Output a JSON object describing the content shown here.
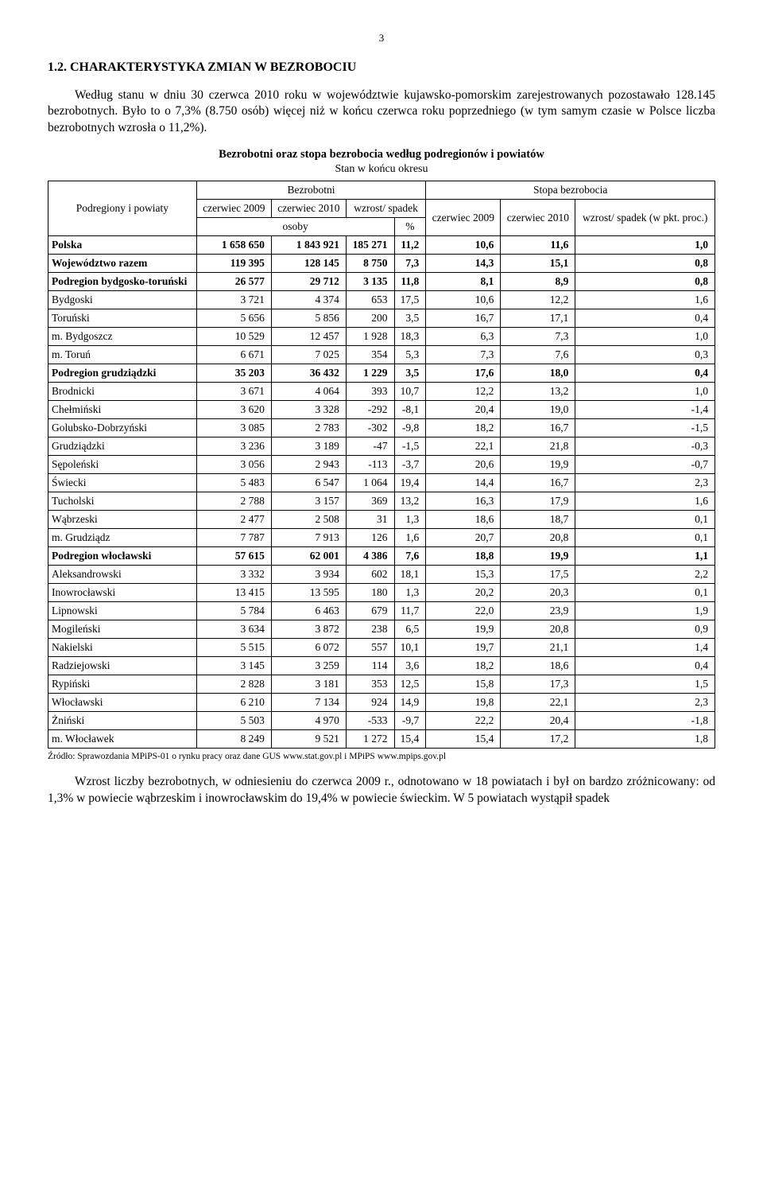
{
  "page_number": "3",
  "heading": "1.2.    CHARAKTERYSTYKA ZMIAN W BEZROBOCIU",
  "para1": "Według stanu w dniu 30 czerwca 2010 roku w województwie kujawsko-pomorskim zarejestrowanych pozostawało 128.145 bezrobotnych. Było to o 7,3% (8.750 osób) więcej niż w końcu czerwca roku poprzedniego (w tym samym czasie w Polsce liczba bezrobotnych wzrosła o 11,2%).",
  "table_title": "Bezrobotni oraz stopa bezrobocia według podregionów i powiatów",
  "table_subtitle": "Stan w końcu okresu",
  "headers": {
    "col_group": "Podregiony i powiaty",
    "bezrobotni": "Bezrobotni",
    "stopa": "Stopa bezrobocia",
    "c2009": "czerwiec 2009",
    "c2010": "czerwiec 2010",
    "wzrost_spadek": "wzrost/ spadek",
    "osoby": "osoby",
    "pct": "%",
    "wzrost_pkt": "wzrost/ spadek (w pkt. proc.)"
  },
  "rows": [
    {
      "label": "Polska",
      "bold": true,
      "v": [
        "1 658 650",
        "1 843 921",
        "185 271",
        "11,2",
        "10,6",
        "11,6",
        "1,0"
      ]
    },
    {
      "label": "Województwo razem",
      "bold": true,
      "v": [
        "119 395",
        "128 145",
        "8 750",
        "7,3",
        "14,3",
        "15,1",
        "0,8"
      ]
    },
    {
      "label": "Podregion bydgosko-toruński",
      "bold": true,
      "v": [
        "26 577",
        "29 712",
        "3 135",
        "11,8",
        "8,1",
        "8,9",
        "0,8"
      ]
    },
    {
      "label": "Bydgoski",
      "bold": false,
      "v": [
        "3 721",
        "4 374",
        "653",
        "17,5",
        "10,6",
        "12,2",
        "1,6"
      ]
    },
    {
      "label": "Toruński",
      "bold": false,
      "v": [
        "5 656",
        "5 856",
        "200",
        "3,5",
        "16,7",
        "17,1",
        "0,4"
      ]
    },
    {
      "label": "m. Bydgoszcz",
      "bold": false,
      "v": [
        "10 529",
        "12 457",
        "1 928",
        "18,3",
        "6,3",
        "7,3",
        "1,0"
      ]
    },
    {
      "label": "m. Toruń",
      "bold": false,
      "v": [
        "6 671",
        "7 025",
        "354",
        "5,3",
        "7,3",
        "7,6",
        "0,3"
      ]
    },
    {
      "label": "Podregion grudziądzki",
      "bold": true,
      "v": [
        "35 203",
        "36 432",
        "1 229",
        "3,5",
        "17,6",
        "18,0",
        "0,4"
      ]
    },
    {
      "label": "Brodnicki",
      "bold": false,
      "v": [
        "3 671",
        "4 064",
        "393",
        "10,7",
        "12,2",
        "13,2",
        "1,0"
      ]
    },
    {
      "label": "Chełmiński",
      "bold": false,
      "v": [
        "3 620",
        "3 328",
        "-292",
        "-8,1",
        "20,4",
        "19,0",
        "-1,4"
      ]
    },
    {
      "label": "Golubsko-Dobrzyński",
      "bold": false,
      "v": [
        "3 085",
        "2 783",
        "-302",
        "-9,8",
        "18,2",
        "16,7",
        "-1,5"
      ]
    },
    {
      "label": "Grudziądzki",
      "bold": false,
      "v": [
        "3 236",
        "3 189",
        "-47",
        "-1,5",
        "22,1",
        "21,8",
        "-0,3"
      ]
    },
    {
      "label": "Sępoleński",
      "bold": false,
      "v": [
        "3 056",
        "2 943",
        "-113",
        "-3,7",
        "20,6",
        "19,9",
        "-0,7"
      ]
    },
    {
      "label": "Świecki",
      "bold": false,
      "v": [
        "5 483",
        "6 547",
        "1 064",
        "19,4",
        "14,4",
        "16,7",
        "2,3"
      ]
    },
    {
      "label": "Tucholski",
      "bold": false,
      "v": [
        "2 788",
        "3 157",
        "369",
        "13,2",
        "16,3",
        "17,9",
        "1,6"
      ]
    },
    {
      "label": "Wąbrzeski",
      "bold": false,
      "v": [
        "2 477",
        "2 508",
        "31",
        "1,3",
        "18,6",
        "18,7",
        "0,1"
      ]
    },
    {
      "label": "m. Grudziądz",
      "bold": false,
      "v": [
        "7 787",
        "7 913",
        "126",
        "1,6",
        "20,7",
        "20,8",
        "0,1"
      ]
    },
    {
      "label": "Podregion włocławski",
      "bold": true,
      "v": [
        "57 615",
        "62 001",
        "4 386",
        "7,6",
        "18,8",
        "19,9",
        "1,1"
      ]
    },
    {
      "label": "Aleksandrowski",
      "bold": false,
      "v": [
        "3 332",
        "3 934",
        "602",
        "18,1",
        "15,3",
        "17,5",
        "2,2"
      ]
    },
    {
      "label": "Inowrocławski",
      "bold": false,
      "v": [
        "13 415",
        "13 595",
        "180",
        "1,3",
        "20,2",
        "20,3",
        "0,1"
      ]
    },
    {
      "label": "Lipnowski",
      "bold": false,
      "v": [
        "5 784",
        "6 463",
        "679",
        "11,7",
        "22,0",
        "23,9",
        "1,9"
      ]
    },
    {
      "label": "Mogileński",
      "bold": false,
      "v": [
        "3 634",
        "3 872",
        "238",
        "6,5",
        "19,9",
        "20,8",
        "0,9"
      ]
    },
    {
      "label": "Nakielski",
      "bold": false,
      "v": [
        "5 515",
        "6 072",
        "557",
        "10,1",
        "19,7",
        "21,1",
        "1,4"
      ]
    },
    {
      "label": "Radziejowski",
      "bold": false,
      "v": [
        "3 145",
        "3 259",
        "114",
        "3,6",
        "18,2",
        "18,6",
        "0,4"
      ]
    },
    {
      "label": "Rypiński",
      "bold": false,
      "v": [
        "2 828",
        "3 181",
        "353",
        "12,5",
        "15,8",
        "17,3",
        "1,5"
      ]
    },
    {
      "label": "Włocławski",
      "bold": false,
      "v": [
        "6 210",
        "7 134",
        "924",
        "14,9",
        "19,8",
        "22,1",
        "2,3"
      ]
    },
    {
      "label": "Żniński",
      "bold": false,
      "v": [
        "5 503",
        "4 970",
        "-533",
        "-9,7",
        "22,2",
        "20,4",
        "-1,8"
      ]
    },
    {
      "label": "m. Włocławek",
      "bold": false,
      "v": [
        "8 249",
        "9 521",
        "1 272",
        "15,4",
        "15,4",
        "17,2",
        "1,8"
      ]
    }
  ],
  "footnote": "Źródło: Sprawozdania MPiPS-01 o rynku pracy oraz dane GUS www.stat.gov.pl i MPiPS www.mpips.gov.pl",
  "para2": "Wzrost liczby bezrobotnych, w odniesieniu do czerwca 2009 r., odnotowano w 18 powiatach i był on bardzo zróżnicowany: od 1,3% w powiecie wąbrzeskim i inowrocławskim do 19,4% w powiecie świeckim. W 5 powiatach wystąpił spadek"
}
